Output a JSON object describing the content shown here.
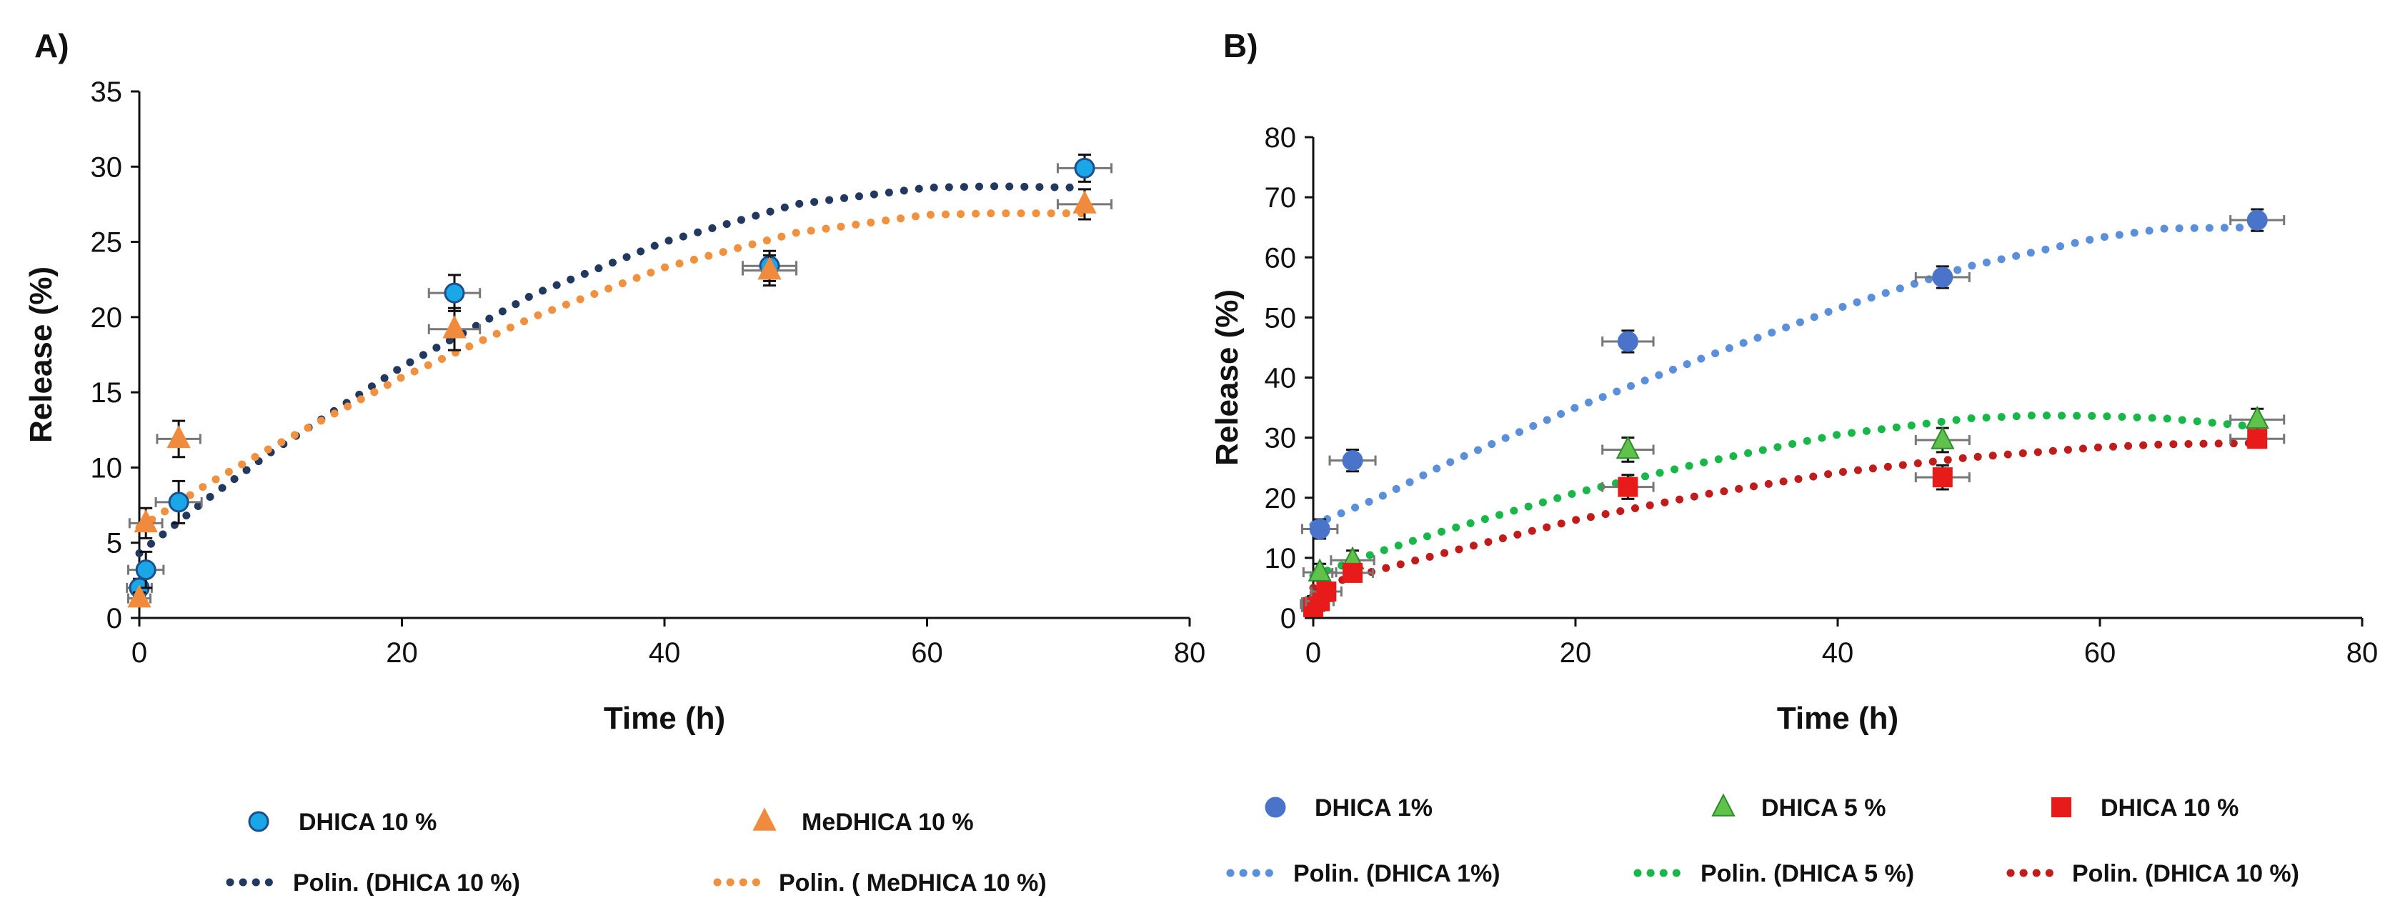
{
  "chart_data": [
    {
      "panel": "A)",
      "type": "scatter",
      "xlabel": "Time (h)",
      "ylabel": "Release (%)",
      "xlim": [
        0,
        80
      ],
      "ylim": [
        0,
        35
      ],
      "xticks": [
        "0",
        "20",
        "40",
        "60",
        "80"
      ],
      "yticks": [
        "0",
        "5",
        "10",
        "15",
        "20",
        "25",
        "30",
        "35"
      ],
      "series": [
        {
          "name": "DHICA 10 %",
          "marker": "circle",
          "color": "#1aa7e8",
          "stroke": "#1f4e8c",
          "x": [
            0,
            0.5,
            3,
            24,
            48,
            72
          ],
          "y": [
            2.0,
            3.2,
            7.7,
            21.6,
            23.4,
            29.9
          ],
          "yerr": [
            0.6,
            1.2,
            1.4,
            1.2,
            1.0,
            0.9
          ],
          "xerr": [
            0.4,
            0.8,
            1.2,
            1.4,
            1.5,
            1.5
          ]
        },
        {
          "name": "MeDHICA 10 %",
          "marker": "triangle",
          "color": "#f08a3c",
          "stroke": "#f08a3c",
          "x": [
            0,
            0.5,
            3,
            24,
            48,
            72
          ],
          "y": [
            1.3,
            6.3,
            11.9,
            19.2,
            23.1,
            27.5
          ],
          "yerr": [
            0.4,
            1.0,
            1.2,
            1.4,
            1.0,
            1.0
          ],
          "xerr": [
            0.3,
            0.7,
            1.1,
            1.4,
            1.5,
            1.5
          ]
        }
      ],
      "trendlines": [
        {
          "name": "Polin. (DHICA 10 %)",
          "color": "#22385e",
          "x": [
            0,
            5,
            10,
            20,
            30,
            40,
            50,
            60,
            65,
            72
          ],
          "y": [
            4.3,
            7.8,
            11.0,
            16.7,
            21.5,
            25.0,
            27.5,
            28.6,
            28.7,
            28.6
          ]
        },
        {
          "name": "Polin. ( MeDHICA 10 %)",
          "color": "#f0913f",
          "x": [
            0,
            5,
            10,
            20,
            30,
            40,
            50,
            60,
            65,
            72
          ],
          "y": [
            6.0,
            8.8,
            11.3,
            16.0,
            20.0,
            23.3,
            25.6,
            26.8,
            26.9,
            26.9
          ]
        }
      ]
    },
    {
      "panel": "B)",
      "type": "scatter",
      "xlabel": "Time (h)",
      "ylabel": "Release (%)",
      "xlim": [
        0,
        80
      ],
      "ylim": [
        0,
        80
      ],
      "xticks": [
        "0",
        "20",
        "40",
        "60",
        "80"
      ],
      "yticks": [
        "0",
        "10",
        "20",
        "30",
        "40",
        "50",
        "60",
        "70",
        "80"
      ],
      "series": [
        {
          "name": "DHICA 1%",
          "marker": "circle",
          "color": "#4a74c9",
          "stroke": "#4a74c9",
          "x": [
            0,
            0.5,
            3,
            24,
            48,
            72
          ],
          "y": [
            2.3,
            14.8,
            26.2,
            46.0,
            56.7,
            66.2
          ],
          "yerr": [
            1.0,
            1.6,
            1.8,
            1.8,
            1.8,
            1.8
          ],
          "xerr": [
            0.4,
            0.8,
            1.2,
            1.4,
            1.5,
            1.5
          ]
        },
        {
          "name": "DHICA 5 %",
          "marker": "triangle",
          "color": "#5fc24a",
          "stroke": "#2e8b2e",
          "x": [
            0,
            0.5,
            3,
            24,
            48,
            72
          ],
          "y": [
            2.6,
            7.6,
            9.6,
            28.0,
            29.6,
            33.0
          ],
          "yerr": [
            1.0,
            1.4,
            1.6,
            2.0,
            2.0,
            1.8
          ],
          "xerr": [
            0.3,
            0.7,
            1.1,
            1.4,
            1.5,
            1.5
          ]
        },
        {
          "name": "DHICA 10 %",
          "marker": "square",
          "color": "#e81b1b",
          "stroke": "#e81b1b",
          "x": [
            0,
            0.5,
            1,
            3,
            24,
            48,
            72
          ],
          "y": [
            1.8,
            2.8,
            4.4,
            7.5,
            21.8,
            23.4,
            29.8
          ],
          "yerr": [
            0.8,
            1.0,
            1.0,
            1.4,
            2.0,
            2.0,
            1.4
          ],
          "xerr": [
            0.3,
            0.5,
            0.6,
            1.0,
            1.4,
            1.5,
            1.5
          ]
        }
      ],
      "trendlines": [
        {
          "name": "Polin. (DHICA 1%)",
          "color": "#5b8fd9",
          "x": [
            0,
            5,
            10,
            20,
            30,
            40,
            50,
            60,
            65,
            72
          ],
          "y": [
            15.5,
            20.0,
            25.5,
            35.0,
            43.5,
            51.5,
            58.5,
            63.3,
            64.8,
            65.0
          ]
        },
        {
          "name": "Polin. (DHICA 5 %)",
          "color": "#19b64a",
          "x": [
            0,
            5,
            10,
            20,
            30,
            40,
            50,
            55,
            60,
            65,
            72
          ],
          "y": [
            7.0,
            11.0,
            14.5,
            20.8,
            26.0,
            30.5,
            33.2,
            33.7,
            33.6,
            33.2,
            31.8
          ]
        },
        {
          "name": "Polin. (DHICA 10 %)",
          "color": "#c01c1c",
          "x": [
            0,
            5,
            10,
            20,
            30,
            40,
            50,
            60,
            65,
            72
          ],
          "y": [
            5.0,
            8.0,
            10.8,
            16.3,
            20.6,
            24.2,
            26.7,
            28.4,
            28.9,
            29.1
          ]
        }
      ]
    }
  ]
}
